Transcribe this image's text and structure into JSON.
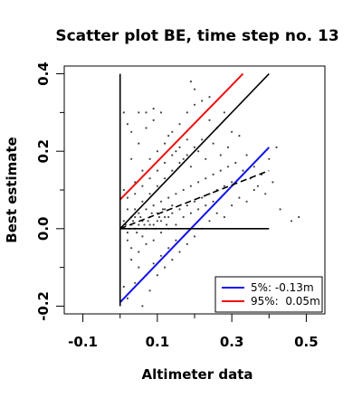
{
  "chart_data": {
    "type": "scatter",
    "title": "Scatter plot BE, time step no. 13",
    "xlabel": "Altimeter data",
    "ylabel": "Best estimate",
    "xlim": [
      -0.15,
      0.55
    ],
    "ylim": [
      -0.22,
      0.42
    ],
    "xticks": [
      -0.1,
      0.1,
      0.3,
      0.5
    ],
    "xtick_labels": [
      "-0.1",
      "0.1",
      "0.3",
      "0.5"
    ],
    "xminor_ticks": [
      0.0,
      0.2,
      0.4
    ],
    "yticks": [
      -0.2,
      0.0,
      0.2,
      0.4
    ],
    "ytick_labels": [
      "-0.2",
      "0.0",
      "0.2",
      "0.4"
    ],
    "yminor_ticks": [
      -0.1,
      0.1,
      0.3
    ],
    "grid": false,
    "legend_position": "bottom-right",
    "legend": [
      {
        "label": "5%: -0.13m",
        "color": "#1010ee"
      },
      {
        "label": "95%:  0.05m",
        "color": "#ee1010"
      }
    ],
    "series": [
      {
        "name": "5%: -0.13m",
        "kind": "line",
        "style": "solid",
        "color": "#1010ee",
        "x": [
          0.0,
          0.4
        ],
        "y": [
          -0.19,
          0.21
        ]
      },
      {
        "name": "95%:  0.05m",
        "kind": "line",
        "style": "solid",
        "color": "#ee1010",
        "x": [
          0.0,
          0.33
        ],
        "y": [
          0.075,
          0.4
        ]
      },
      {
        "kind": "line",
        "style": "solid",
        "color": "#000000",
        "x": [
          0.0,
          0.4
        ],
        "y": [
          0.0,
          0.4
        ]
      },
      {
        "kind": "line",
        "style": "dashed",
        "color": "#000000",
        "x": [
          0.0,
          0.4
        ],
        "y": [
          0.0,
          0.15
        ]
      },
      {
        "kind": "line",
        "style": "solid",
        "color": "#000000",
        "x": [
          0.0,
          0.0
        ],
        "y": [
          -0.2,
          0.4
        ]
      },
      {
        "kind": "line",
        "style": "solid",
        "color": "#000000",
        "x": [
          0.0,
          0.4
        ],
        "y": [
          0.0,
          0.0
        ]
      }
    ],
    "points": [
      [
        0.01,
        0.02
      ],
      [
        0.02,
        -0.01
      ],
      [
        0.03,
        0.03
      ],
      [
        0.04,
        0.0
      ],
      [
        0.05,
        0.04
      ],
      [
        0.06,
        -0.02
      ],
      [
        0.07,
        0.05
      ],
      [
        0.08,
        0.01
      ],
      [
        0.09,
        0.06
      ],
      [
        0.1,
        0.02
      ],
      [
        0.11,
        0.07
      ],
      [
        0.12,
        0.03
      ],
      [
        0.13,
        0.08
      ],
      [
        0.14,
        0.04
      ],
      [
        0.15,
        0.09
      ],
      [
        0.16,
        0.05
      ],
      [
        0.17,
        0.1
      ],
      [
        0.18,
        0.06
      ],
      [
        0.19,
        0.11
      ],
      [
        0.2,
        0.07
      ],
      [
        0.21,
        0.12
      ],
      [
        0.22,
        0.08
      ],
      [
        0.23,
        0.13
      ],
      [
        0.24,
        0.09
      ],
      [
        0.25,
        0.14
      ],
      [
        0.26,
        0.1
      ],
      [
        0.27,
        0.15
      ],
      [
        0.28,
        0.11
      ],
      [
        0.29,
        0.16
      ],
      [
        0.3,
        0.12
      ],
      [
        0.02,
        0.08
      ],
      [
        0.04,
        0.12
      ],
      [
        0.06,
        0.15
      ],
      [
        0.08,
        0.18
      ],
      [
        0.1,
        0.2
      ],
      [
        0.12,
        0.22
      ],
      [
        0.14,
        0.25
      ],
      [
        0.16,
        0.27
      ],
      [
        0.18,
        0.3
      ],
      [
        0.2,
        0.32
      ],
      [
        0.03,
        -0.08
      ],
      [
        0.05,
        -0.1
      ],
      [
        0.07,
        -0.12
      ],
      [
        0.09,
        -0.09
      ],
      [
        0.11,
        -0.07
      ],
      [
        0.13,
        -0.05
      ],
      [
        0.15,
        -0.03
      ],
      [
        0.17,
        -0.02
      ],
      [
        0.01,
        -0.15
      ],
      [
        0.02,
        -0.18
      ],
      [
        0.04,
        -0.14
      ],
      [
        0.06,
        -0.2
      ],
      [
        0.08,
        -0.16
      ],
      [
        0.03,
        0.18
      ],
      [
        0.05,
        0.22
      ],
      [
        0.07,
        0.26
      ],
      [
        0.09,
        0.28
      ],
      [
        0.11,
        0.3
      ],
      [
        0.13,
        0.24
      ],
      [
        0.15,
        0.2
      ],
      [
        0.17,
        0.18
      ],
      [
        0.19,
        0.16
      ],
      [
        0.21,
        0.2
      ],
      [
        0.23,
        0.18
      ],
      [
        0.25,
        0.22
      ],
      [
        0.27,
        0.19
      ],
      [
        0.29,
        0.21
      ],
      [
        0.31,
        0.17
      ],
      [
        0.33,
        0.15
      ],
      [
        0.35,
        0.13
      ],
      [
        0.37,
        0.11
      ],
      [
        0.39,
        0.09
      ],
      [
        0.32,
        0.24
      ],
      [
        0.34,
        0.19
      ],
      [
        0.36,
        0.16
      ],
      [
        0.38,
        0.14
      ],
      [
        0.41,
        0.12
      ],
      [
        0.43,
        0.05
      ],
      [
        0.46,
        0.02
      ],
      [
        0.48,
        0.03
      ],
      [
        0.01,
        0.3
      ],
      [
        0.02,
        0.27
      ],
      [
        0.03,
        0.25
      ],
      [
        0.05,
        0.3
      ],
      [
        0.07,
        0.3
      ],
      [
        0.09,
        0.31
      ],
      [
        0.04,
        0.05
      ],
      [
        0.06,
        0.07
      ],
      [
        0.08,
        0.09
      ],
      [
        0.1,
        0.11
      ],
      [
        0.12,
        0.13
      ],
      [
        0.14,
        0.15
      ],
      [
        0.16,
        0.17
      ],
      [
        0.18,
        0.19
      ],
      [
        0.2,
        0.21
      ],
      [
        0.22,
        0.23
      ],
      [
        0.02,
        -0.03
      ],
      [
        0.03,
        -0.05
      ],
      [
        0.05,
        -0.06
      ],
      [
        0.07,
        -0.04
      ],
      [
        0.09,
        -0.03
      ],
      [
        0.11,
        -0.01
      ],
      [
        0.13,
        0.0
      ],
      [
        0.15,
        0.01
      ],
      [
        0.17,
        0.03
      ],
      [
        0.19,
        0.04
      ],
      [
        0.21,
        0.05
      ],
      [
        0.23,
        0.06
      ],
      [
        0.25,
        0.07
      ],
      [
        0.27,
        0.08
      ],
      [
        0.18,
        0.23
      ],
      [
        0.16,
        0.21
      ],
      [
        0.14,
        0.19
      ],
      [
        0.12,
        0.17
      ],
      [
        0.1,
        0.15
      ],
      [
        0.08,
        0.13
      ],
      [
        0.06,
        0.11
      ],
      [
        0.04,
        0.09
      ],
      [
        0.02,
        0.05
      ],
      [
        0.01,
        0.1
      ],
      [
        0.2,
        0.36
      ],
      [
        0.22,
        0.33
      ],
      [
        0.24,
        0.28
      ],
      [
        0.26,
        0.26
      ],
      [
        0.28,
        0.3
      ],
      [
        0.3,
        0.25
      ],
      [
        0.24,
        0.34
      ],
      [
        0.19,
        0.38
      ],
      [
        0.1,
        -0.12
      ],
      [
        0.12,
        -0.1
      ],
      [
        0.14,
        -0.08
      ],
      [
        0.16,
        -0.06
      ],
      [
        0.18,
        -0.04
      ],
      [
        0.2,
        -0.02
      ],
      [
        0.22,
        0.0
      ],
      [
        0.24,
        0.02
      ],
      [
        0.26,
        0.04
      ],
      [
        0.28,
        0.03
      ],
      [
        0.3,
        0.06
      ],
      [
        0.32,
        0.08
      ],
      [
        0.34,
        0.07
      ],
      [
        0.36,
        0.1
      ],
      [
        0.4,
        0.18
      ],
      [
        0.42,
        0.21
      ],
      [
        0.03,
        0.01
      ],
      [
        0.04,
        0.03
      ],
      [
        0.05,
        0.01
      ],
      [
        0.06,
        0.02
      ],
      [
        0.07,
        0.0
      ],
      [
        0.08,
        0.03
      ],
      [
        0.09,
        0.01
      ],
      [
        0.1,
        0.04
      ],
      [
        0.11,
        0.02
      ],
      [
        0.12,
        0.05
      ],
      [
        0.13,
        0.03
      ],
      [
        0.14,
        0.06
      ],
      [
        0.015,
        0.01
      ],
      [
        0.025,
        0.0
      ],
      [
        0.035,
        0.02
      ],
      [
        0.045,
        -0.01
      ],
      [
        0.055,
        0.03
      ],
      [
        0.065,
        0.01
      ],
      [
        0.075,
        0.02
      ],
      [
        0.085,
        0.04
      ],
      [
        0.095,
        0.0
      ],
      [
        0.105,
        0.03
      ],
      [
        0.115,
        0.05
      ],
      [
        0.125,
        0.01
      ]
    ]
  }
}
